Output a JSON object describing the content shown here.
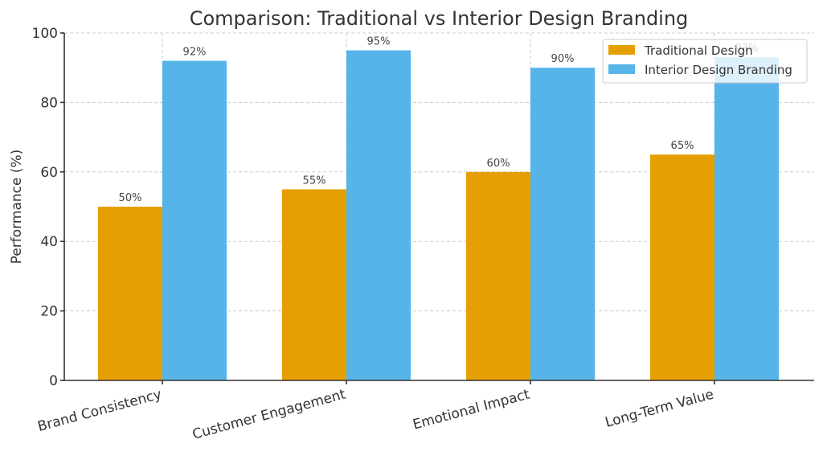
{
  "chart_data": {
    "type": "bar",
    "title": "Comparison: Traditional vs Interior Design Branding",
    "xlabel": "",
    "ylabel": "Performance (%)",
    "ylim": [
      0,
      100
    ],
    "yticks": [
      0,
      20,
      40,
      60,
      80,
      100
    ],
    "ytick_labels": [
      "0",
      "20",
      "40",
      "60",
      "80",
      "100"
    ],
    "grid": true,
    "legend_position": "top-right",
    "categories": [
      "Brand Consistency",
      "Customer Engagement",
      "Emotional Impact",
      "Long-Term Value"
    ],
    "series": [
      {
        "name": "Traditional Design",
        "color": "#E69F00",
        "values": [
          50,
          55,
          60,
          65
        ],
        "labels": [
          "50%",
          "55%",
          "60%",
          "65%"
        ]
      },
      {
        "name": "Interior Design Branding",
        "color": "#56B4E9",
        "values": [
          92,
          95,
          90,
          93
        ],
        "labels": [
          "92%",
          "95%",
          "90%",
          "93%"
        ]
      }
    ]
  }
}
